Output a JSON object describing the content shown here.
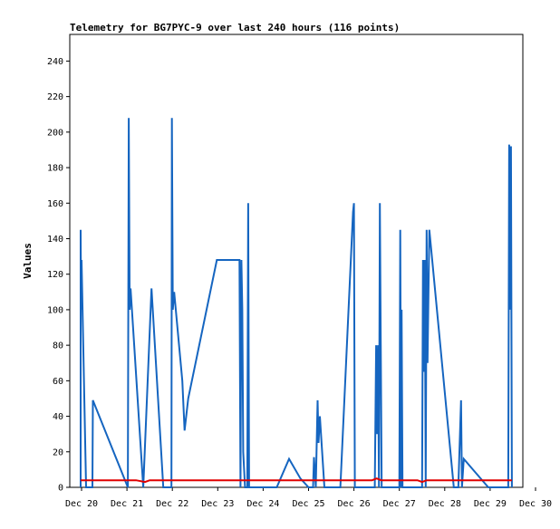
{
  "chart_data": {
    "type": "line",
    "title": "Telemetry for BG7PYC-9 over last 240 hours (116 points)",
    "xlabel": "",
    "ylabel": "Values",
    "xlim": [
      0,
      10
    ],
    "ylim": [
      0,
      255
    ],
    "x_ticks": [
      {
        "value": 0,
        "label": "Dec 20"
      },
      {
        "value": 1,
        "label": "Dec 21"
      },
      {
        "value": 2,
        "label": "Dec 22"
      },
      {
        "value": 3,
        "label": "Dec 23"
      },
      {
        "value": 4,
        "label": "Dec 24"
      },
      {
        "value": 5,
        "label": "Dec 25"
      },
      {
        "value": 6,
        "label": "Dec 26"
      },
      {
        "value": 7,
        "label": "Dec 27"
      },
      {
        "value": 8,
        "label": "Dec 28"
      },
      {
        "value": 9,
        "label": "Dec 29"
      },
      {
        "value": 10,
        "label": "Dec 30"
      }
    ],
    "y_ticks": [
      0,
      20,
      40,
      60,
      80,
      100,
      120,
      140,
      160,
      180,
      200,
      220,
      240
    ],
    "grid": false,
    "legend": "none",
    "series": [
      {
        "color": "#1565c0",
        "points": [
          [
            -0.02,
            0
          ],
          [
            -0.02,
            145
          ],
          [
            -0.01,
            100
          ],
          [
            0,
            128
          ],
          [
            0.1,
            0
          ],
          [
            0.22,
            0
          ],
          [
            0.24,
            0
          ],
          [
            0.25,
            49
          ],
          [
            1.02,
            0
          ],
          [
            1.04,
            208
          ],
          [
            1.06,
            100
          ],
          [
            1.08,
            112
          ],
          [
            1.36,
            0
          ],
          [
            1.54,
            112
          ],
          [
            1.8,
            0
          ],
          [
            1.98,
            0
          ],
          [
            1.99,
            208
          ],
          [
            2.01,
            100
          ],
          [
            2.04,
            110
          ],
          [
            2.22,
            60
          ],
          [
            2.27,
            32
          ],
          [
            2.35,
            50
          ],
          [
            2.98,
            128
          ],
          [
            3.48,
            128
          ],
          [
            3.5,
            0
          ],
          [
            3.52,
            128
          ],
          [
            3.54,
            100
          ],
          [
            3.56,
            20
          ],
          [
            3.6,
            0
          ],
          [
            3.65,
            0
          ],
          [
            3.67,
            160
          ],
          [
            3.69,
            0
          ],
          [
            4.3,
            0
          ],
          [
            4.57,
            16
          ],
          [
            4.82,
            5
          ],
          [
            5.0,
            0
          ],
          [
            5.1,
            0
          ],
          [
            5.12,
            17
          ],
          [
            5.16,
            0
          ],
          [
            5.2,
            49
          ],
          [
            5.22,
            25
          ],
          [
            5.25,
            40
          ],
          [
            5.35,
            0
          ],
          [
            5.7,
            0
          ],
          [
            5.98,
            155
          ],
          [
            6.0,
            160
          ],
          [
            6.02,
            0
          ],
          [
            6.46,
            0
          ],
          [
            6.49,
            80
          ],
          [
            6.51,
            30
          ],
          [
            6.53,
            80
          ],
          [
            6.55,
            0
          ],
          [
            6.57,
            160
          ],
          [
            6.59,
            80
          ],
          [
            6.61,
            0
          ],
          [
            7.0,
            0
          ],
          [
            7.02,
            145
          ],
          [
            7.04,
            0
          ],
          [
            7.05,
            100
          ],
          [
            7.07,
            0
          ],
          [
            7.5,
            0
          ],
          [
            7.52,
            128
          ],
          [
            7.54,
            65
          ],
          [
            7.56,
            128
          ],
          [
            7.58,
            0
          ],
          [
            7.6,
            145
          ],
          [
            7.62,
            70
          ],
          [
            7.66,
            145
          ],
          [
            8.2,
            0
          ],
          [
            8.3,
            0
          ],
          [
            8.36,
            49
          ],
          [
            8.38,
            0
          ],
          [
            8.42,
            16
          ],
          [
            8.62,
            10
          ],
          [
            8.96,
            0
          ],
          [
            9.4,
            0
          ],
          [
            9.42,
            193
          ],
          [
            9.44,
            100
          ],
          [
            9.46,
            192
          ],
          [
            9.48,
            0
          ]
        ]
      },
      {
        "color": "#e00000",
        "points": [
          [
            -0.02,
            4
          ],
          [
            1.2,
            4
          ],
          [
            1.4,
            3
          ],
          [
            1.5,
            4
          ],
          [
            3.5,
            4
          ],
          [
            6.4,
            4
          ],
          [
            6.5,
            5
          ],
          [
            6.6,
            4
          ],
          [
            7.4,
            4
          ],
          [
            7.5,
            3
          ],
          [
            7.6,
            4
          ],
          [
            9.48,
            4
          ]
        ]
      }
    ]
  }
}
